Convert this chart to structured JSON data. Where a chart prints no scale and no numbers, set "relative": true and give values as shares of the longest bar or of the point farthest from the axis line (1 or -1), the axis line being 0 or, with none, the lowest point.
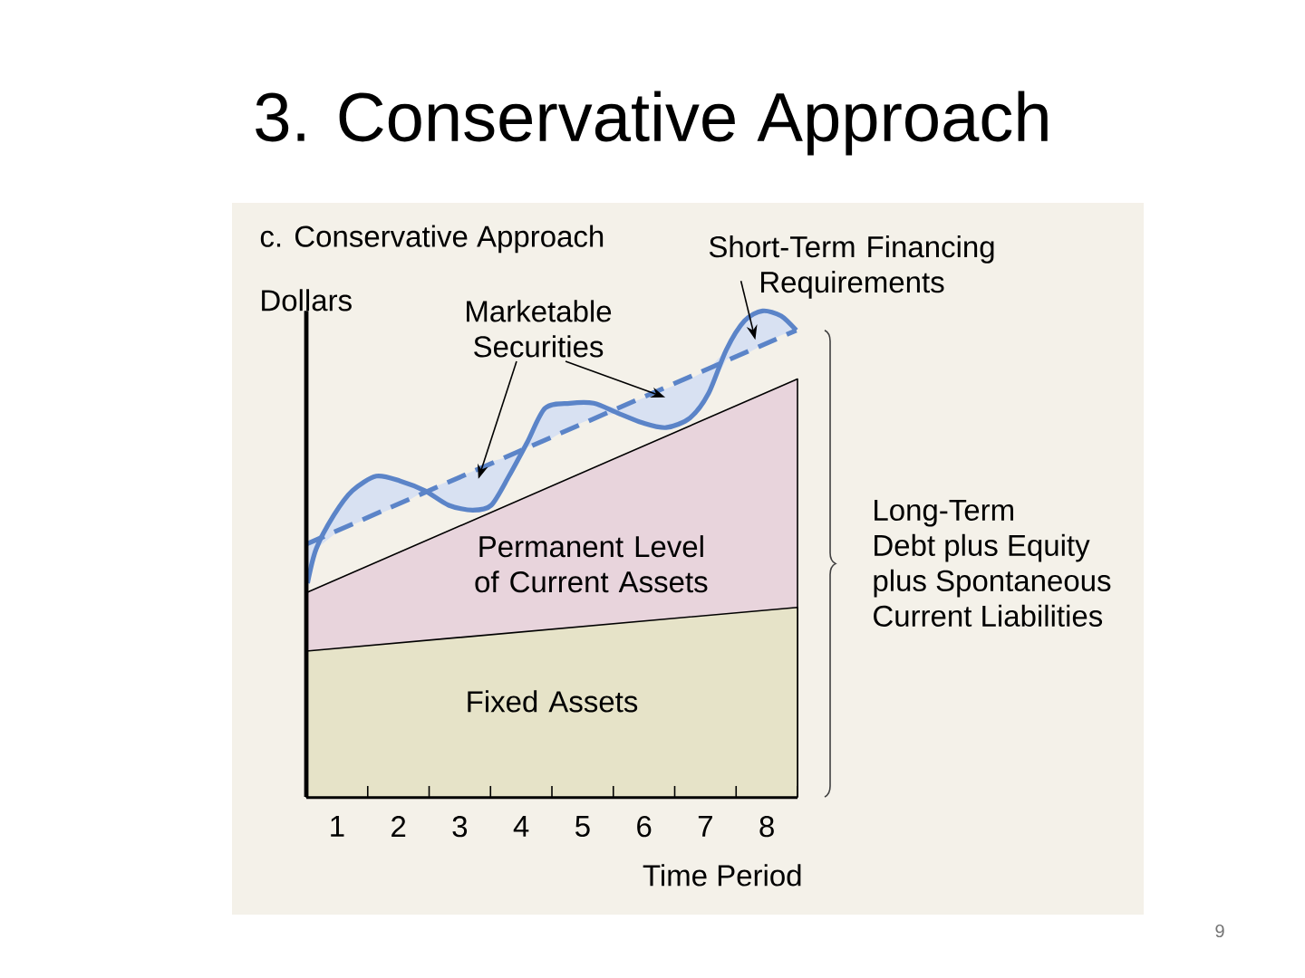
{
  "chart_data": {
    "type": "area",
    "title": "3. Conservative Approach",
    "subtitle": "c. Conservative Approach",
    "xlabel": "Time Period",
    "ylabel": "Dollars",
    "relative": true,
    "tick_labels": "x",
    "xlim": [
      0.5,
      8.5
    ],
    "xticks": [
      1,
      2,
      3,
      4,
      5,
      6,
      7,
      8,
      {
        "value": 1.5,
        "label": null
      },
      {
        "value": 2.5,
        "label": null
      },
      {
        "value": 3.5,
        "label": null
      },
      {
        "value": 4.5,
        "label": null
      },
      {
        "value": 5.5,
        "label": null
      },
      {
        "value": 6.5,
        "label": null
      },
      {
        "value": 7.5,
        "label": null
      },
      {
        "value": 8.5,
        "label": null
      }
    ],
    "series": [
      {
        "name": "Fixed Assets",
        "color": "#e6e3c8",
        "x": [
          0.5,
          8.5
        ],
        "values": [
          0.3,
          0.39
        ]
      },
      {
        "name": "Permanent Level of Current Assets",
        "color": "#e8d4dc",
        "x": [
          0.5,
          8.5
        ],
        "values": [
          0.42,
          0.86
        ]
      },
      {
        "type": "line",
        "color": "#5b84c8",
        "x": [
          0.52,
          0.66,
          0.95,
          1.25,
          1.64,
          2.03,
          2.43,
          2.82,
          3.21,
          3.51,
          3.8,
          4.1,
          4.39,
          4.79,
          5.18,
          5.57,
          5.97,
          6.36,
          6.75,
          7.05,
          7.34,
          7.64,
          7.93,
          8.23,
          8.48
        ],
        "values": [
          0.44,
          0.51,
          0.58,
          0.63,
          0.66,
          0.65,
          0.63,
          0.6,
          0.59,
          0.6,
          0.66,
          0.73,
          0.8,
          0.81,
          0.81,
          0.79,
          0.77,
          0.76,
          0.78,
          0.83,
          0.92,
          0.98,
          1.0,
          0.99,
          0.96
        ],
        "lower": [
          0.44,
          0.51,
          0.54,
          0.56,
          0.58,
          0.6,
          0.63,
          0.6,
          0.59,
          0.6,
          0.66,
          0.72,
          0.73,
          0.76,
          0.78,
          0.79,
          0.77,
          0.76,
          0.78,
          0.83,
          0.9,
          0.91,
          0.93,
          0.95,
          0.96
        ],
        "upper": [
          0.52,
          0.53,
          0.58,
          0.63,
          0.66,
          0.65,
          0.63,
          0.65,
          0.67,
          0.69,
          0.7,
          0.73,
          0.8,
          0.81,
          0.81,
          0.8,
          0.82,
          0.84,
          0.86,
          0.88,
          0.92,
          0.98,
          1.0,
          0.99,
          0.96
        ]
      },
      {
        "type": "line",
        "line_style": "dashed",
        "color": "#5b84c8",
        "x": [
          0.5,
          8.48
        ],
        "values": [
          0.52,
          0.96
        ]
      }
    ],
    "annotations": [
      "Marketable Securities",
      "Short-Term Financing Requirements",
      "Long-Term Debt plus Equity plus Spontaneous Current Liabilities",
      "9"
    ]
  }
}
